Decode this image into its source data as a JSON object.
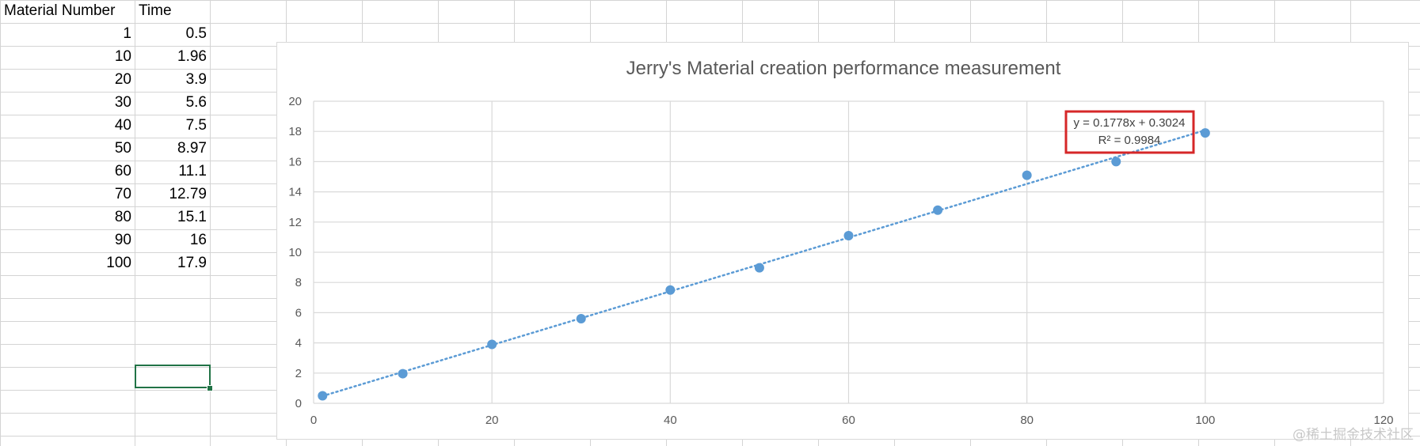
{
  "sheet": {
    "header_a": "Material Number",
    "header_b": "Time",
    "rows": [
      {
        "material": "1",
        "time": "0.5"
      },
      {
        "material": "10",
        "time": "1.96"
      },
      {
        "material": "20",
        "time": "3.9"
      },
      {
        "material": "30",
        "time": "5.6"
      },
      {
        "material": "40",
        "time": "7.5"
      },
      {
        "material": "50",
        "time": "8.97"
      },
      {
        "material": "60",
        "time": "11.1"
      },
      {
        "material": "70",
        "time": "12.79"
      },
      {
        "material": "80",
        "time": "15.1"
      },
      {
        "material": "90",
        "time": "16"
      },
      {
        "material": "100",
        "time": "17.9"
      }
    ]
  },
  "chart_data": {
    "type": "scatter",
    "title": "Jerry's Material creation performance measurement",
    "xlabel": "",
    "ylabel": "",
    "xlim": [
      0,
      120
    ],
    "ylim": [
      0,
      20
    ],
    "x_ticks": [
      0,
      20,
      40,
      60,
      80,
      100,
      120
    ],
    "y_ticks": [
      0,
      2,
      4,
      6,
      8,
      10,
      12,
      14,
      16,
      18,
      20
    ],
    "grid": true,
    "series": [
      {
        "x": [
          1,
          10,
          20,
          30,
          40,
          50,
          60,
          70,
          80,
          90,
          100
        ],
        "y": [
          0.5,
          1.96,
          3.9,
          5.6,
          7.5,
          8.97,
          11.1,
          12.79,
          15.1,
          16,
          17.9
        ]
      }
    ],
    "trendline": {
      "type": "linear",
      "slope": 0.1778,
      "intercept": 0.3024,
      "x_range": [
        1,
        100
      ],
      "equation": "y = 0.1778x + 0.3024",
      "r_squared": "R² = 0.9984"
    },
    "colors": {
      "marker": "#5b9bd5",
      "trendline": "#5b9bd5",
      "highlight_box": "#d62728",
      "grid": "#d9d9d9"
    }
  },
  "watermark": "@稀土掘金技术社区"
}
